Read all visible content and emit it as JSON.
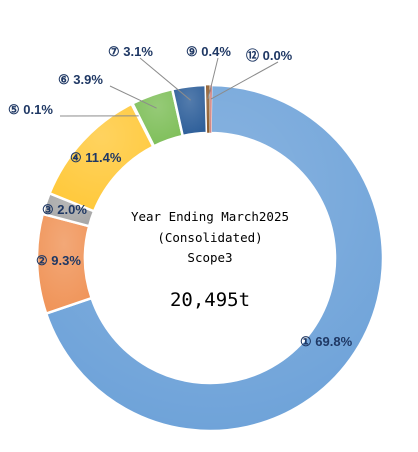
{
  "chart_data": {
    "type": "pie",
    "variant": "donut",
    "center": {
      "line1": "Year Ending March2025",
      "line2": "(Consolidated)",
      "line3": "Scope3",
      "total": "20,495t"
    },
    "slices": [
      {
        "label": "① 69.8%",
        "value": 69.8,
        "color": "#6fa3d9"
      },
      {
        "label": "② 9.3%",
        "value": 9.3,
        "color": "#f0955a"
      },
      {
        "label": "③ 2.0%",
        "value": 2.0,
        "color": "#a7a7a7"
      },
      {
        "label": "④ 11.4%",
        "value": 11.4,
        "color": "#ffc93c"
      },
      {
        "label": "⑤ 0.1%",
        "value": 0.1,
        "color": "#b8860b"
      },
      {
        "label": "⑥ 3.9%",
        "value": 3.9,
        "color": "#7fbf5a"
      },
      {
        "label": "⑦ 3.1%",
        "value": 3.1,
        "color": "#2e5f9a"
      },
      {
        "label": "⑨ 0.4%",
        "value": 0.4,
        "color": "#8c5a2b"
      },
      {
        "label": "⑫ 0.0%",
        "value": 0.0,
        "color": "#c0504d"
      }
    ],
    "colors": {
      "background": "#ffffff",
      "label_text": "#1f3864",
      "separator": "#ffffff"
    }
  }
}
